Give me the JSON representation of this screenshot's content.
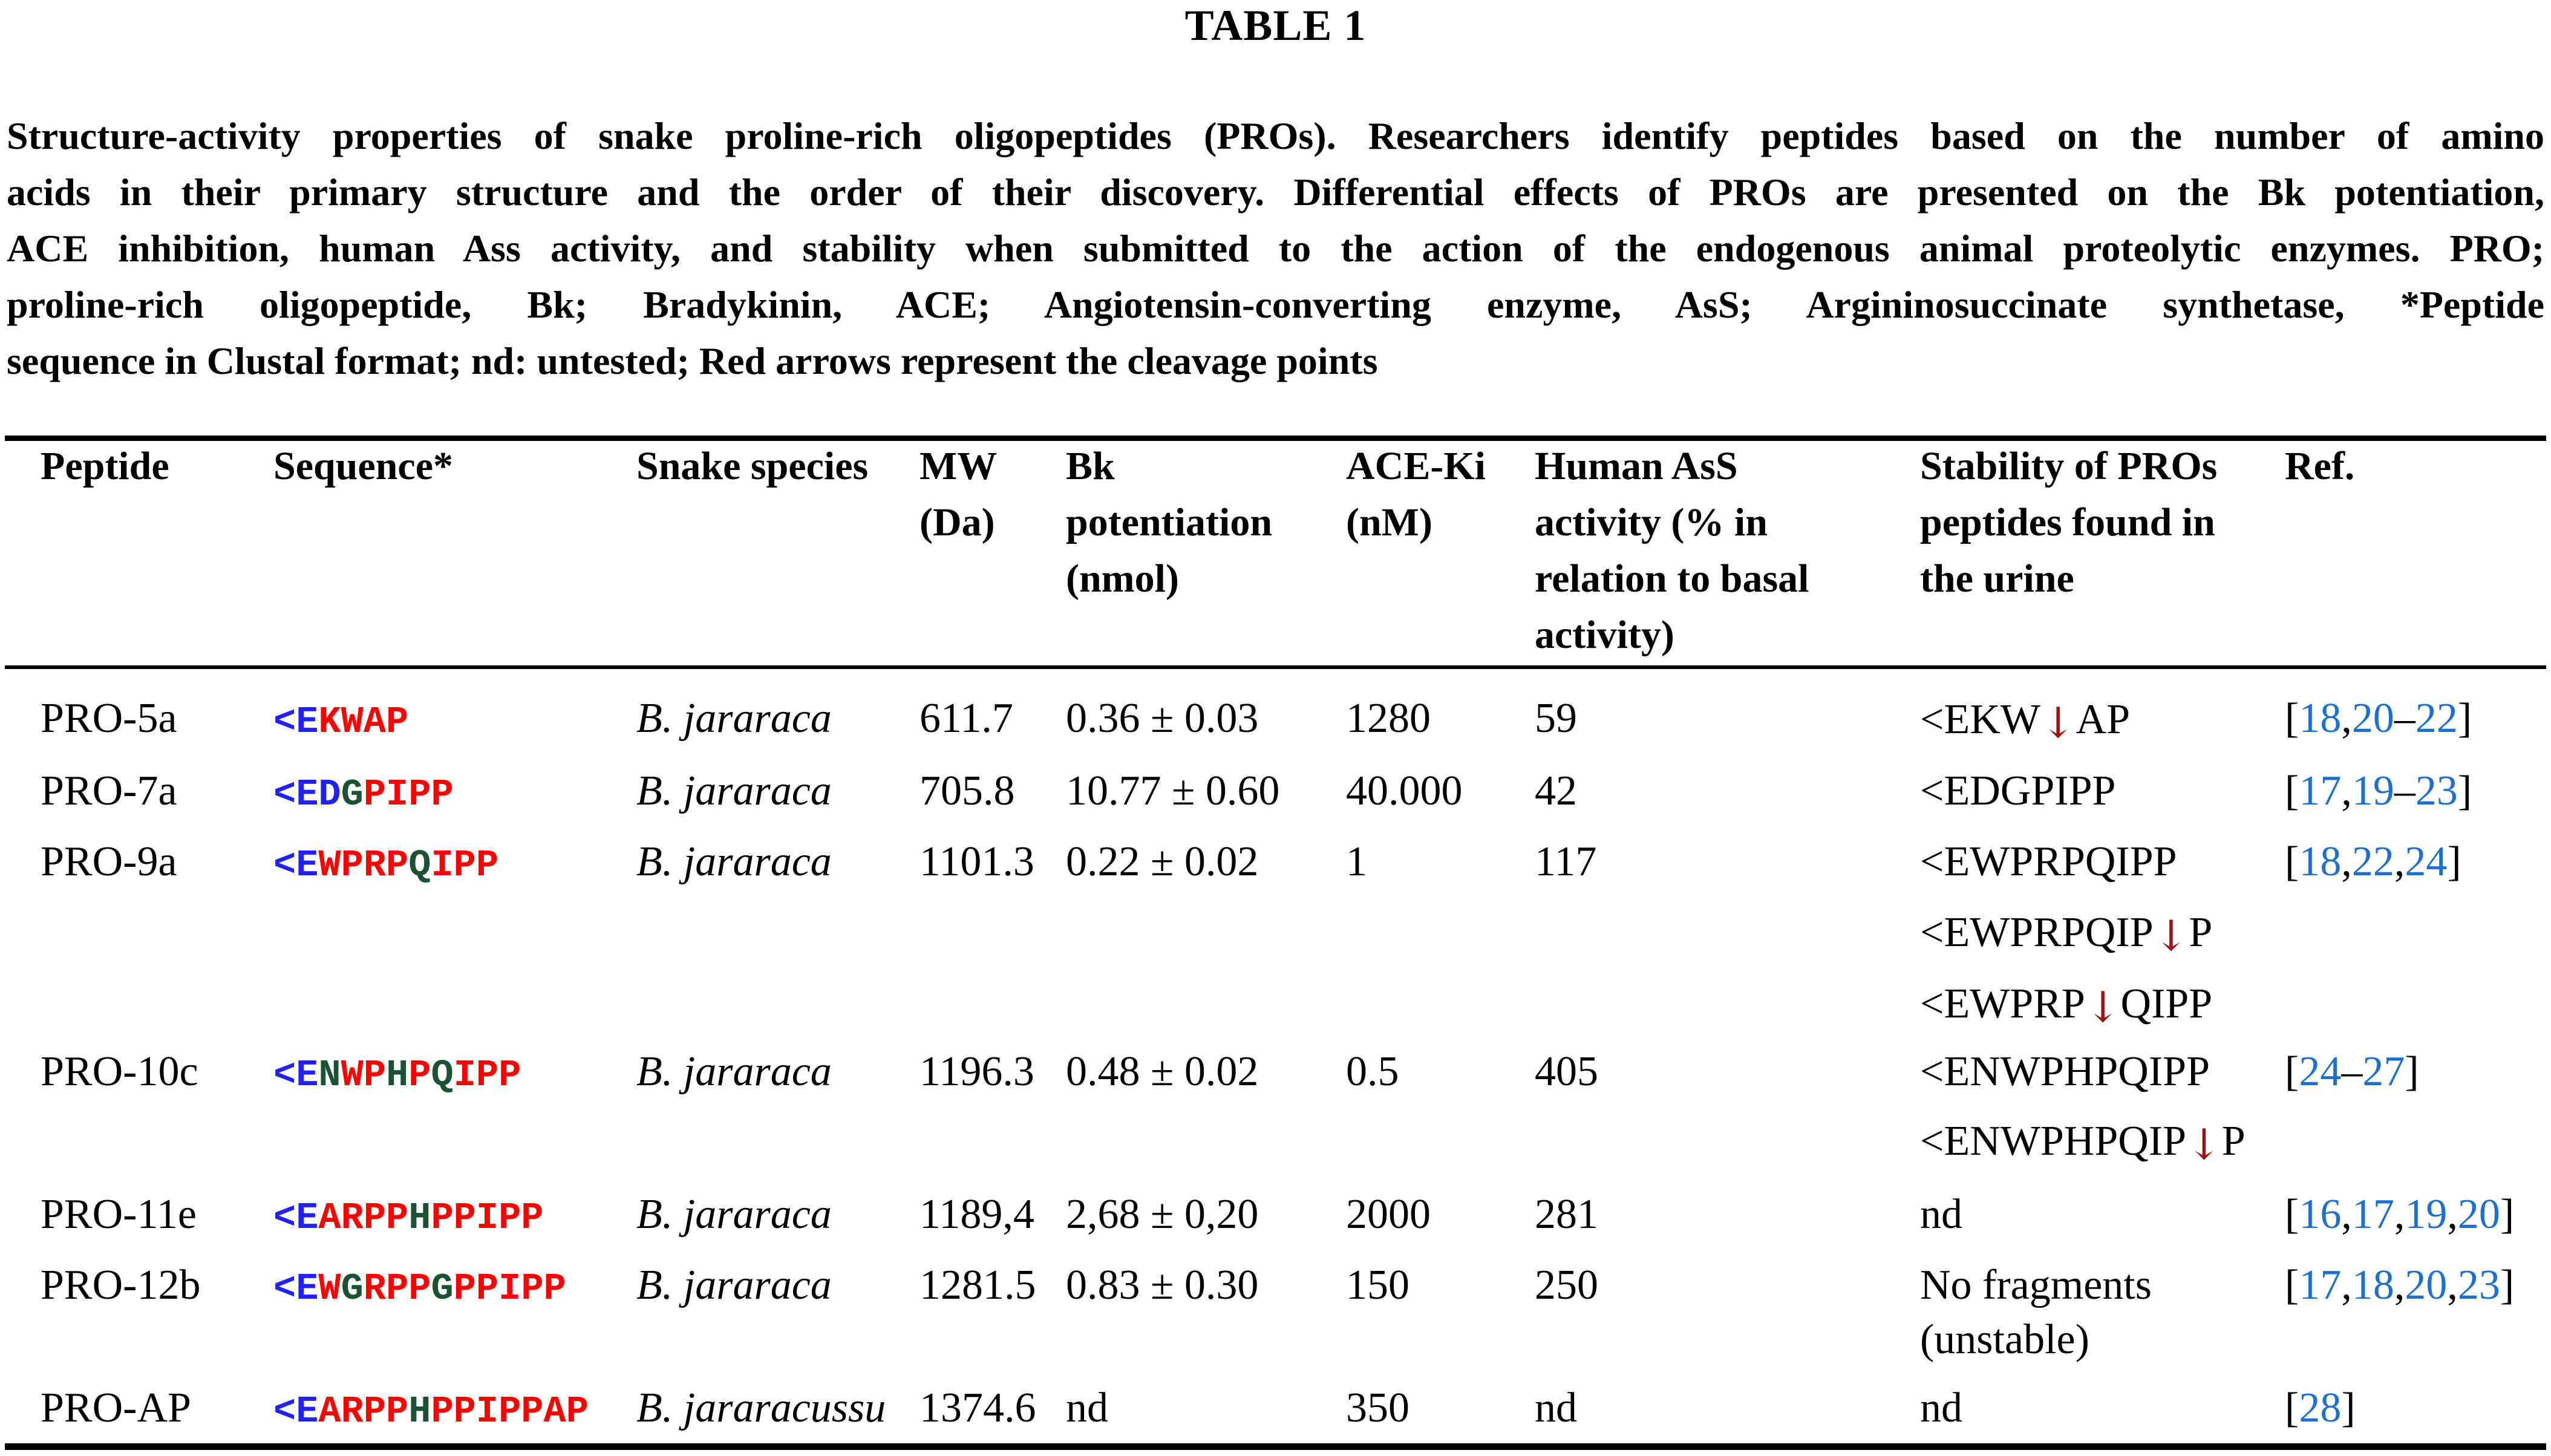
{
  "title": "TABLE 1",
  "caption_lines": [
    "Structure-activity properties of snake proline-rich oligopeptides (PROs). Researchers identify peptides based on the number of amino",
    "acids in their primary structure and the order of their discovery. Differential effects of PROs are presented on the Bk potentiation,",
    "ACE inhibition, human Ass activity, and stability when submitted to the action of the endogenous animal proteolytic enzymes. PRO;",
    "proline-rich oligopeptide, Bk; Bradykinin, ACE; Angiotensin-converting enzyme, AsS; Argininosuccinate synthetase, *Peptide",
    "sequence in Clustal format; nd: untested; Red arrows represent the cleavage points"
  ],
  "columns": [
    {
      "id": "peptide",
      "lines": [
        "Peptide"
      ]
    },
    {
      "id": "sequence",
      "lines": [
        "Sequence*"
      ]
    },
    {
      "id": "species",
      "lines": [
        "Snake species"
      ]
    },
    {
      "id": "mw",
      "lines": [
        "MW",
        "(Da)"
      ]
    },
    {
      "id": "bk",
      "lines": [
        "Bk",
        "potentiation",
        "(nmol)"
      ]
    },
    {
      "id": "ace",
      "lines": [
        "ACE-Ki",
        "(nM)"
      ]
    },
    {
      "id": "ass",
      "lines": [
        "Human AsS",
        "activity (% in",
        "relation to basal",
        "activity)"
      ]
    },
    {
      "id": "stability",
      "lines": [
        "Stability of PROs",
        "peptides found in",
        "the urine"
      ]
    },
    {
      "id": "ref",
      "lines": [
        "Ref."
      ]
    }
  ],
  "colors": {
    "sequence_blue": "#2121ff",
    "sequence_green": "#1a5233",
    "sequence_red": "#fe0000",
    "citation_blue": "#1e6fd0",
    "cleavage_arrow_red": "#9a1414",
    "text_black": "#000000",
    "background": "#ffffff"
  },
  "rows": [
    {
      "peptide": "PRO-5a",
      "sequence": [
        [
          "<E",
          "b"
        ],
        [
          "KWAP",
          "r"
        ]
      ],
      "species": "B. jararaca",
      "mw": "611.7",
      "bk": "0.36 ± 0.03",
      "ace": "1280",
      "ass": "59",
      "stability": [
        [
          [
            "<EKW",
            "t"
          ],
          [
            "↓",
            "a"
          ],
          [
            "AP",
            "t"
          ]
        ]
      ],
      "ref": [
        [
          "[",
          "s"
        ],
        [
          "18",
          "n"
        ],
        [
          ",",
          "s"
        ],
        [
          "20",
          "n"
        ],
        [
          "–",
          "s"
        ],
        [
          "22",
          "n"
        ],
        [
          "]",
          "s"
        ]
      ]
    },
    {
      "peptide": "PRO-7a",
      "sequence": [
        [
          "<ED",
          "b"
        ],
        [
          "G",
          "g"
        ],
        [
          "PIPP",
          "r"
        ]
      ],
      "species": "B. jararaca",
      "mw": "705.8",
      "bk": "10.77 ± 0.60",
      "ace": "40.000",
      "ass": "42",
      "stability": [
        [
          [
            "<EDGPIPP",
            "t"
          ]
        ]
      ],
      "ref": [
        [
          "[",
          "s"
        ],
        [
          "17",
          "n"
        ],
        [
          ",",
          "s"
        ],
        [
          "19",
          "n"
        ],
        [
          "–",
          "s"
        ],
        [
          "23",
          "n"
        ],
        [
          "]",
          "s"
        ]
      ]
    },
    {
      "peptide": "PRO-9a",
      "sequence": [
        [
          "<E",
          "b"
        ],
        [
          "WPRP",
          "r"
        ],
        [
          "Q",
          "g"
        ],
        [
          "IPP",
          "r"
        ]
      ],
      "species": "B. jararaca",
      "mw": "1101.3",
      "bk": "0.22 ± 0.02",
      "ace": "1",
      "ass": "117",
      "stability": [
        [
          [
            "<EWPRPQIPP",
            "t"
          ]
        ],
        [
          [
            "<EWPRPQIP",
            "t"
          ],
          [
            "↓",
            "a"
          ],
          [
            "P",
            "t"
          ]
        ],
        [
          [
            "<EWPRP",
            "t"
          ],
          [
            "↓",
            "a"
          ],
          [
            "QIPP",
            "t"
          ]
        ]
      ],
      "ref": [
        [
          "[",
          "s"
        ],
        [
          "18",
          "n"
        ],
        [
          ",",
          "s"
        ],
        [
          "22",
          "n"
        ],
        [
          ",",
          "s"
        ],
        [
          "24",
          "n"
        ],
        [
          "]",
          "s"
        ]
      ]
    },
    {
      "peptide": "PRO-10c",
      "sequence": [
        [
          "<E",
          "b"
        ],
        [
          "N",
          "g"
        ],
        [
          "WP",
          "r"
        ],
        [
          "H",
          "g"
        ],
        [
          "P",
          "r"
        ],
        [
          "Q",
          "g"
        ],
        [
          "IPP",
          "r"
        ]
      ],
      "species": "B. jararaca",
      "mw": "1196.3",
      "bk": "0.48 ± 0.02",
      "ace": "0.5",
      "ass": "405",
      "stability": [
        [
          [
            "<ENWPHPQIPP",
            "t"
          ]
        ],
        [
          [
            "<ENWPHPQIP",
            "t"
          ],
          [
            "↓",
            "a"
          ],
          [
            "P",
            "t"
          ]
        ]
      ],
      "ref": [
        [
          "[",
          "s"
        ],
        [
          "24",
          "n"
        ],
        [
          "–",
          "s"
        ],
        [
          "27",
          "n"
        ],
        [
          "]",
          "s"
        ]
      ]
    },
    {
      "peptide": "PRO-11e",
      "sequence": [
        [
          "<E",
          "b"
        ],
        [
          "ARPP",
          "r"
        ],
        [
          "H",
          "g"
        ],
        [
          "PPIPP",
          "r"
        ]
      ],
      "species": "B. jararaca",
      "mw": "1189,4",
      "bk": "2,68 ± 0,20",
      "ace": "2000",
      "ass": "281",
      "stability": [
        [
          [
            "nd",
            "t"
          ]
        ]
      ],
      "ref": [
        [
          "[",
          "s"
        ],
        [
          "16",
          "n"
        ],
        [
          ",",
          "s"
        ],
        [
          "17",
          "n"
        ],
        [
          ",",
          "s"
        ],
        [
          "19",
          "n"
        ],
        [
          ",",
          "s"
        ],
        [
          "20",
          "n"
        ],
        [
          "]",
          "s"
        ]
      ]
    },
    {
      "peptide": "PRO-12b",
      "sequence": [
        [
          "<E",
          "b"
        ],
        [
          "W",
          "r"
        ],
        [
          "G",
          "g"
        ],
        [
          "RPP",
          "r"
        ],
        [
          "G",
          "g"
        ],
        [
          "PPIPP",
          "r"
        ]
      ],
      "species": "B. jararaca",
      "mw": "1281.5",
      "bk": "0.83 ± 0.30",
      "ace": "150",
      "ass": "250",
      "stability": [
        [
          [
            "No fragments",
            "t"
          ]
        ],
        [
          [
            "(unstable)",
            "t"
          ]
        ]
      ],
      "ref": [
        [
          "[",
          "s"
        ],
        [
          "17",
          "n"
        ],
        [
          ",",
          "s"
        ],
        [
          "18",
          "n"
        ],
        [
          ",",
          "s"
        ],
        [
          "20",
          "n"
        ],
        [
          ",",
          "s"
        ],
        [
          "23",
          "n"
        ],
        [
          "]",
          "s"
        ]
      ]
    },
    {
      "peptide": "PRO-AP",
      "sequence": [
        [
          "<E",
          "b"
        ],
        [
          "ARPP",
          "r"
        ],
        [
          "H",
          "g"
        ],
        [
          "PPIPPAP",
          "r"
        ]
      ],
      "species": "B. jararacussu",
      "mw": "1374.6",
      "bk": "nd",
      "ace": "350",
      "ass": "nd",
      "stability": [
        [
          [
            "nd",
            "t"
          ]
        ]
      ],
      "ref": [
        [
          "[",
          "s"
        ],
        [
          "28",
          "n"
        ],
        [
          "]",
          "s"
        ]
      ]
    }
  ]
}
